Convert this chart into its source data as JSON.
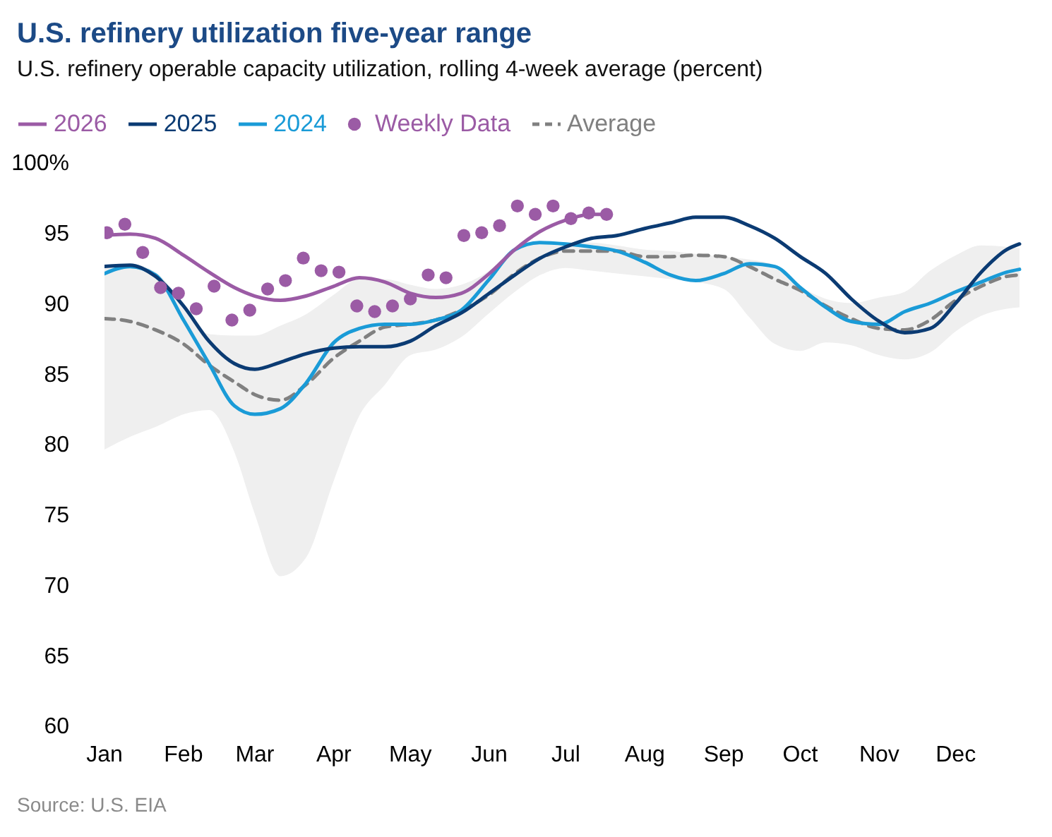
{
  "chart_data": {
    "type": "line",
    "title": "U.S. refinery utilization five-year range",
    "subtitle": "U.S. refinery operable capacity utilization, rolling 4-week average (percent)",
    "annotations": [
      "Source: U.S. EIA"
    ],
    "x": [
      "--01-01",
      "--01-11",
      "--01-21",
      "--02-01",
      "--02-11",
      "--02-21",
      "--03-01",
      "--03-11",
      "--03-21",
      "--04-01",
      "--04-11",
      "--04-21",
      "--05-01",
      "--05-11",
      "--05-21",
      "--06-01",
      "--06-11",
      "--06-21",
      "--07-01",
      "--07-11",
      "--07-21",
      "--08-01",
      "--08-11",
      "--08-21",
      "--09-01",
      "--09-11",
      "--09-21",
      "--10-01",
      "--10-11",
      "--10-21",
      "--11-01",
      "--11-11",
      "--11-21",
      "--12-01",
      "--12-11",
      "--12-21",
      "--12-26"
    ],
    "series": [
      {
        "name": "2026",
        "color": "#9b5ba5",
        "x": [
          "--01-01",
          "--01-11",
          "--01-21",
          "--02-01",
          "--02-11",
          "--02-21",
          "--03-01",
          "--03-11",
          "--03-21",
          "--04-01",
          "--04-11",
          "--04-21",
          "--05-01",
          "--05-11",
          "--05-21",
          "--06-01",
          "--06-11",
          "--06-21",
          "--07-01",
          "--07-11",
          "--07-17"
        ],
        "values": [
          94.8,
          94.9,
          94.6,
          93.4,
          92.2,
          91.1,
          90.5,
          90.2,
          90.5,
          91.2,
          91.8,
          91.5,
          90.7,
          90.4,
          90.7,
          92.1,
          93.8,
          95.1,
          95.9,
          96.3,
          96.3
        ]
      },
      {
        "name": "2025",
        "color": "#0b3b73",
        "values": [
          92.6,
          92.7,
          91.9,
          89.8,
          87.3,
          85.7,
          85.3,
          85.8,
          86.4,
          86.8,
          86.9,
          86.9,
          87.3,
          88.4,
          89.3,
          90.7,
          92.0,
          93.2,
          94.0,
          94.6,
          94.8,
          95.3,
          95.7,
          96.1,
          96.1,
          95.5,
          94.6,
          93.3,
          92.1,
          90.3,
          88.7,
          87.9,
          88.2,
          90.0,
          92.2,
          93.8,
          94.2
        ]
      },
      {
        "name": "2024",
        "color": "#1a9bd7",
        "values": [
          92.1,
          92.6,
          92.0,
          88.8,
          85.7,
          82.7,
          82.1,
          82.5,
          84.3,
          87.2,
          88.2,
          88.5,
          88.5,
          88.8,
          89.5,
          91.7,
          93.8,
          94.3,
          94.2,
          94.0,
          93.7,
          92.9,
          92.0,
          91.6,
          92.1,
          92.8,
          92.6,
          91.1,
          89.7,
          88.7,
          88.5,
          89.4,
          90.0,
          90.8,
          91.5,
          92.2,
          92.4
        ]
      },
      {
        "name": "Weekly Data",
        "type": "scatter",
        "marker": "circle",
        "color": "#9b5ba5",
        "x": [
          "--01-02",
          "--01-09",
          "--01-16",
          "--01-23",
          "--01-30",
          "--02-06",
          "--02-13",
          "--02-20",
          "--02-27",
          "--03-06",
          "--03-13",
          "--03-20",
          "--03-27",
          "--04-03",
          "--04-10",
          "--04-17",
          "--04-24",
          "--05-01",
          "--05-08",
          "--05-15",
          "--05-22",
          "--05-29",
          "--06-05",
          "--06-12",
          "--06-19",
          "--06-26",
          "--07-03",
          "--07-10",
          "--07-17"
        ],
        "values": [
          95.0,
          95.6,
          93.6,
          91.1,
          90.7,
          89.6,
          91.2,
          88.8,
          89.5,
          91.0,
          91.6,
          93.2,
          92.3,
          92.2,
          89.8,
          89.4,
          89.8,
          90.3,
          92.0,
          91.8,
          94.8,
          95.0,
          95.5,
          96.9,
          96.3,
          96.9,
          96.0,
          96.4,
          96.3
        ]
      },
      {
        "name": "Average",
        "color": "#808080",
        "line_style": "dashed",
        "values": [
          88.9,
          88.7,
          88.1,
          87.1,
          85.6,
          84.4,
          83.5,
          83.1,
          84.2,
          86.1,
          87.3,
          88.3,
          88.5,
          88.8,
          89.5,
          90.6,
          92.1,
          93.2,
          93.7,
          93.7,
          93.7,
          93.3,
          93.3,
          93.4,
          93.3,
          92.6,
          91.7,
          90.9,
          89.8,
          88.9,
          88.2,
          88.1,
          88.8,
          90.2,
          91.2,
          91.9,
          92.0
        ],
        "lower": [
          79.6,
          80.5,
          81.2,
          82.1,
          82.4,
          79.4,
          75.0,
          70.6,
          71.9,
          77.4,
          82.0,
          84.2,
          86.3,
          86.7,
          87.6,
          89.3,
          90.8,
          92.0,
          92.5,
          92.3,
          92.1,
          91.9,
          91.7,
          91.5,
          91.0,
          89.0,
          87.1,
          86.6,
          87.2,
          87.0,
          86.3,
          86.0,
          86.5,
          88.0,
          89.1,
          89.6,
          89.7
        ],
        "upper": [
          92.6,
          92.8,
          92.2,
          90.0,
          87.8,
          87.7,
          87.7,
          88.4,
          89.2,
          90.6,
          91.7,
          91.7,
          91.3,
          91.0,
          91.3,
          92.3,
          93.9,
          94.3,
          94.3,
          94.3,
          94.1,
          93.8,
          93.7,
          93.5,
          93.3,
          93.1,
          92.7,
          91.2,
          90.3,
          90.0,
          90.4,
          90.8,
          92.3,
          93.4,
          94.1,
          94.0,
          93.9
        ]
      }
    ],
    "xlim": [
      "--01-01",
      "--12-31"
    ],
    "xticks": [
      {
        "value": "--01-01",
        "label": "Jan"
      },
      {
        "value": "--02-01",
        "label": "Feb"
      },
      {
        "value": "--03-01",
        "label": "Mar"
      },
      {
        "value": "--04-01",
        "label": "Apr"
      },
      {
        "value": "--05-01",
        "label": "May"
      },
      {
        "value": "--06-01",
        "label": "Jun"
      },
      {
        "value": "--07-01",
        "label": "Jul"
      },
      {
        "value": "--08-01",
        "label": "Aug"
      },
      {
        "value": "--09-01",
        "label": "Sep"
      },
      {
        "value": "--10-01",
        "label": "Oct"
      },
      {
        "value": "--11-01",
        "label": "Nov"
      },
      {
        "value": "--12-01",
        "label": "Dec"
      }
    ],
    "ylim": [
      60,
      100
    ],
    "yticks": [
      60,
      65,
      70,
      75,
      80,
      85,
      90,
      95,
      {
        "value": 100,
        "label": "100%"
      }
    ],
    "legend": "top left",
    "marker": "none"
  }
}
